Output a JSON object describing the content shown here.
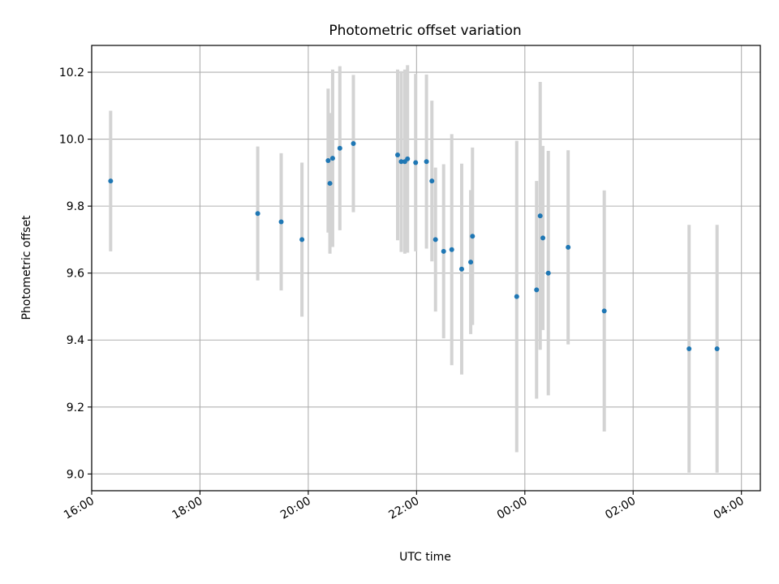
{
  "chart_data": {
    "type": "scatter",
    "title": "Photometric offset variation",
    "xlabel": "UTC time",
    "ylabel": "Photometric offset",
    "grid": true,
    "x_axis_type": "time",
    "xlim": [
      "16:00",
      "04:09"
    ],
    "ylim": [
      8.95,
      10.28
    ],
    "x_ticks": [
      "16:00",
      "18:00",
      "20:00",
      "22:00",
      "00:00",
      "02:00",
      "04:00"
    ],
    "y_ticks": [
      "9.0",
      "9.2",
      "9.4",
      "9.6",
      "9.8",
      "10.0",
      "10.2"
    ],
    "colors": {
      "points": "#1f77b4",
      "errorbars": "#d3d3d3",
      "grid": "#b0b0b0"
    },
    "points": [
      {
        "x": "16:21",
        "y": 9.875,
        "err": 0.21
      },
      {
        "x": "19:04",
        "y": 9.778,
        "err": 0.2
      },
      {
        "x": "19:30",
        "y": 9.753,
        "err": 0.205
      },
      {
        "x": "19:53",
        "y": 9.7,
        "err": 0.23
      },
      {
        "x": "20:22",
        "y": 9.936,
        "err": 0.215
      },
      {
        "x": "20:24",
        "y": 9.868,
        "err": 0.21
      },
      {
        "x": "20:27",
        "y": 9.943,
        "err": 0.265
      },
      {
        "x": "20:35",
        "y": 9.973,
        "err": 0.245
      },
      {
        "x": "20:50",
        "y": 9.987,
        "err": 0.205
      },
      {
        "x": "21:39",
        "y": 9.953,
        "err": 0.255
      },
      {
        "x": "21:43",
        "y": 9.933,
        "err": 0.27
      },
      {
        "x": "21:47",
        "y": 9.933,
        "err": 0.275
      },
      {
        "x": "21:50",
        "y": 9.941,
        "err": 0.28
      },
      {
        "x": "21:59",
        "y": 9.93,
        "err": 0.265
      },
      {
        "x": "22:11",
        "y": 9.933,
        "err": 0.26
      },
      {
        "x": "22:17",
        "y": 9.875,
        "err": 0.24
      },
      {
        "x": "22:21",
        "y": 9.7,
        "err": 0.215
      },
      {
        "x": "22:30",
        "y": 9.665,
        "err": 0.26
      },
      {
        "x": "22:39",
        "y": 9.67,
        "err": 0.345
      },
      {
        "x": "22:50",
        "y": 9.612,
        "err": 0.315
      },
      {
        "x": "23:00",
        "y": 9.633,
        "err": 0.215
      },
      {
        "x": "23:02",
        "y": 9.71,
        "err": 0.265
      },
      {
        "x": "23:51",
        "y": 9.53,
        "err": 0.465
      },
      {
        "x": "00:13",
        "y": 9.55,
        "err": 0.325
      },
      {
        "x": "00:17",
        "y": 9.771,
        "err": 0.4
      },
      {
        "x": "00:20",
        "y": 9.705,
        "err": 0.275
      },
      {
        "x": "00:26",
        "y": 9.6,
        "err": 0.365
      },
      {
        "x": "00:48",
        "y": 9.677,
        "err": 0.29
      },
      {
        "x": "01:28",
        "y": 9.487,
        "err": 0.36
      },
      {
        "x": "03:02",
        "y": 9.374,
        "err": 0.37
      },
      {
        "x": "03:33",
        "y": 9.374,
        "err": 0.37
      }
    ]
  }
}
